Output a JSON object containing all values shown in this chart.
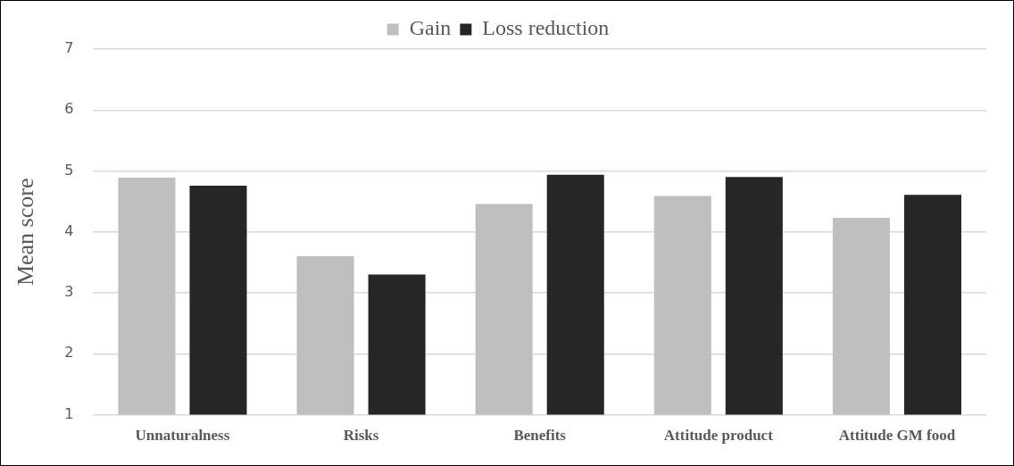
{
  "chart_data": {
    "type": "bar",
    "ylabel": "Mean score",
    "categories": [
      "Unnaturalness",
      "Risks",
      "Benefits",
      "Attitude product",
      "Attitude GM food"
    ],
    "series": [
      {
        "name": "Gain",
        "color": "#bfbfbf",
        "values": [
          4.89,
          3.6,
          4.46,
          4.59,
          4.23
        ]
      },
      {
        "name": "Loss reduction",
        "color": "#262626",
        "values": [
          4.76,
          3.3,
          4.94,
          4.9,
          4.61
        ]
      }
    ],
    "ylim": [
      1,
      7
    ],
    "yticks": [
      1,
      2,
      3,
      4,
      5,
      6,
      7
    ],
    "grid": "y",
    "legend": "top"
  }
}
